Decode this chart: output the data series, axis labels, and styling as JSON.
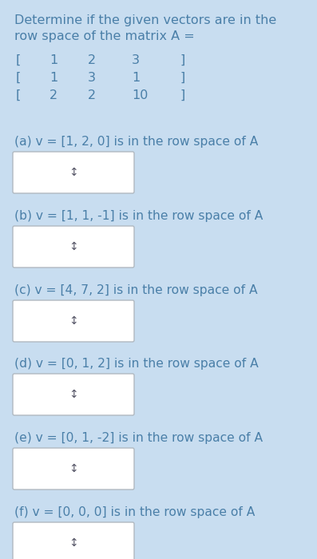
{
  "background_color": "#c5dce f",
  "text_color": "#4a7fa8",
  "title_lines": [
    "Determine if the given vectors are in the",
    "row space of the matrix A ="
  ],
  "matrix_rows": [
    [
      "[",
      "1",
      "2",
      "3",
      "]"
    ],
    [
      "[",
      "1",
      "3",
      "1",
      "]"
    ],
    [
      "[",
      "2",
      "2",
      "10",
      "]"
    ]
  ],
  "questions": [
    "(a) v = [1, 2, 0] is in the row space of A",
    "(b) v = [1, 1, -1] is in the row space of A",
    "(c) v = [4, 7, 2] is in the row space of A",
    "(d) v = [0, 1, 2] is in the row space of A",
    "(e) v = [0, 1, -2] is in the row space of A",
    "(f) v = [0, 0, 0] is in the row space of A"
  ],
  "box_facecolor": "#ffffff",
  "box_edgecolor": "#b0b8c0",
  "arrow_color": "#555566",
  "title_fontsize": 11.5,
  "matrix_fontsize": 11.5,
  "question_fontsize": 11.2,
  "arrow_fontsize": 10,
  "fig_width": 3.97,
  "fig_height": 7.0,
  "dpi": 100,
  "bg_color": "#c8ddf0"
}
